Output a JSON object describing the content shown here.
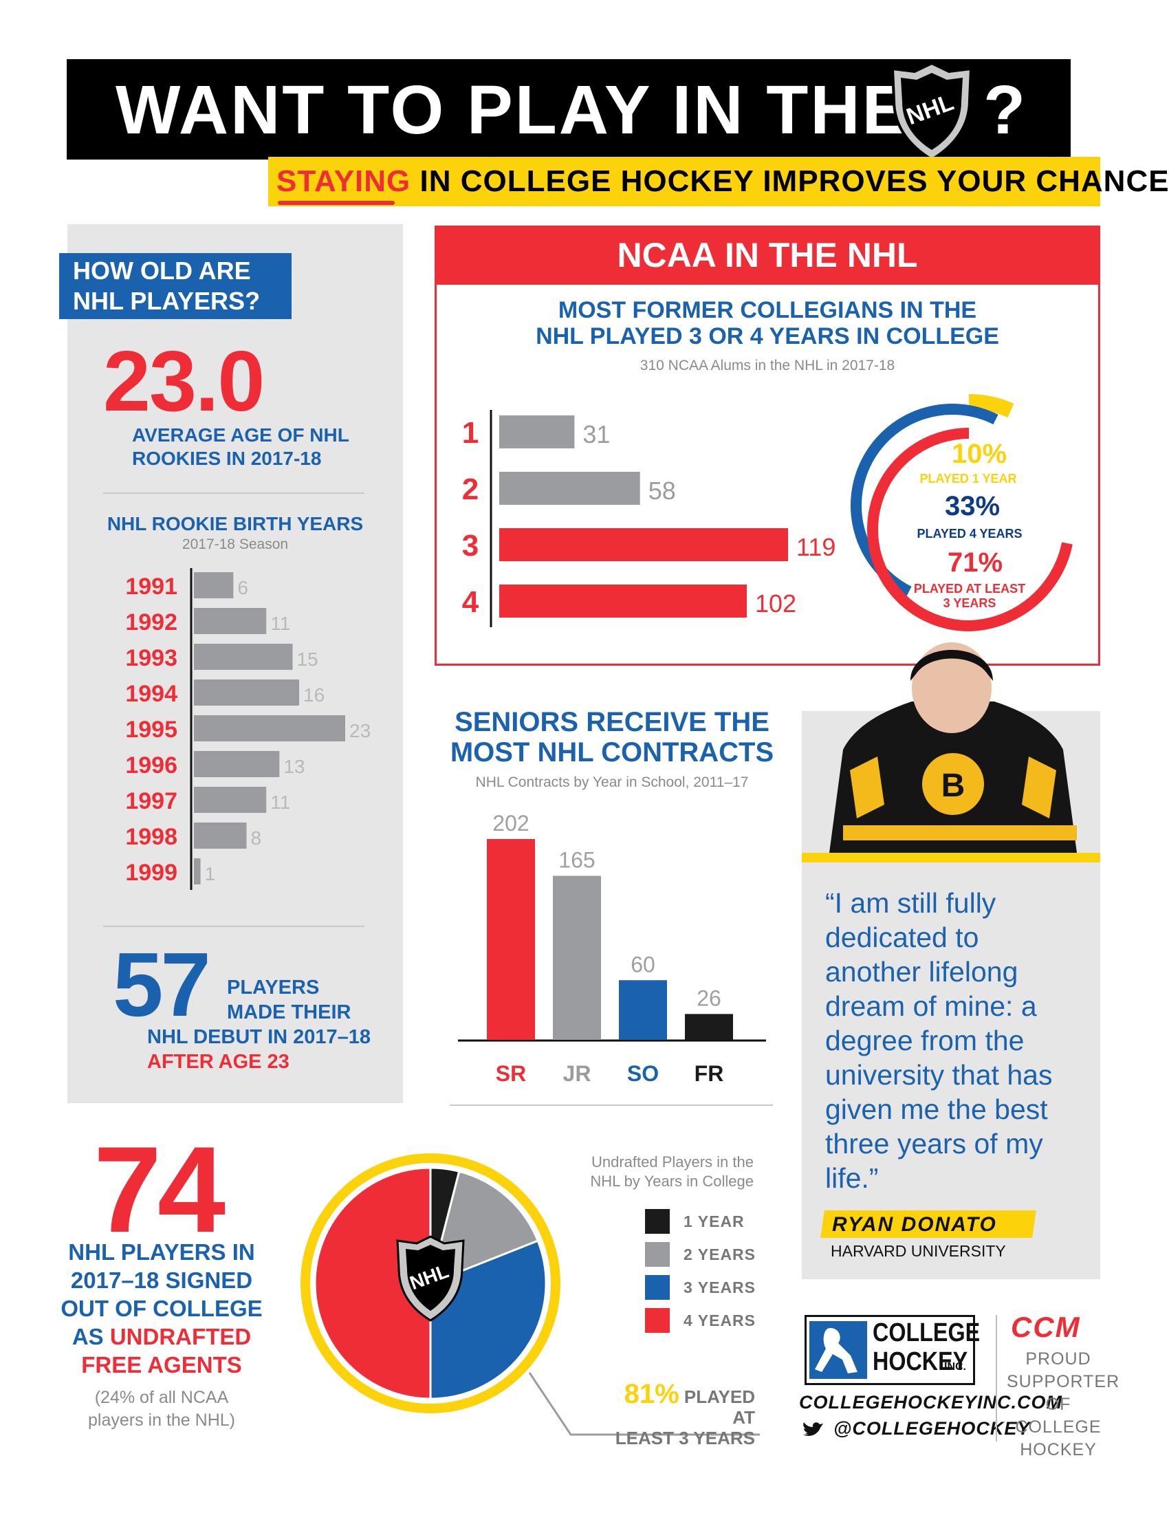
{
  "colors": {
    "red": "#ee2d36",
    "blue": "#1a62ae",
    "navy": "#0d3b84",
    "yellow": "#fcd20a",
    "grey": "#9a9c9f",
    "black": "#1b1b1b"
  },
  "header": {
    "title": "WANT TO PLAY IN THE",
    "logo_text": "NHL",
    "question_mark": "?",
    "subtitle_word": "STAYING",
    "subtitle_rest": "IN COLLEGE HOCKEY IMPROVES YOUR CHANCES!"
  },
  "age_panel": {
    "heading_line1": "HOW OLD ARE",
    "heading_line2": "NHL PLAYERS?",
    "average_age": "23.0",
    "average_caption_line1": "AVERAGE AGE OF NHL",
    "average_caption_line2": "ROOKIES IN 2017-18",
    "debut_number": "57",
    "debut_line1": "PLAYERS",
    "debut_line2": "MADE THEIR",
    "debut_line3": "NHL DEBUT IN 2017–18",
    "debut_line4": "AFTER AGE 23"
  },
  "ncaa_panel": {
    "banner": "NCAA IN THE NHL",
    "ring": {
      "pct1": "10%",
      "label1": "PLAYED 1 YEAR",
      "pct2": "33%",
      "label2": "PLAYED 4 YEARS",
      "pct3": "71%",
      "label3_line1": "PLAYED AT LEAST",
      "label3_line2": "3 YEARS"
    }
  },
  "quote_panel": {
    "quote": "“I am still fully dedicated to another lifelong dream of mine: a degree from the university that has given me the best three years of my life.”",
    "name": "RYAN DONATO",
    "school": "HARVARD UNIVERSITY"
  },
  "undrafted_panel": {
    "number": "74",
    "caption_line1": "NHL PLAYERS IN",
    "caption_line2": "2017–18 SIGNED",
    "caption_line3": "OUT OF COLLEGE",
    "caption_line4_a": "AS",
    "caption_line4_b": "UNDRAFTED",
    "caption_line5": "FREE AGENTS",
    "note_line1": "(24% of all NCAA",
    "note_line2": "players in the NHL)",
    "callout_pct": "81%",
    "callout_line1": "PLAYED AT",
    "callout_line2": "LEAST 3 YEARS"
  },
  "footer": {
    "org_line1": "COLLEGE",
    "org_line2": "HOCKEY",
    "org_suffix": "INC.",
    "website": "COLLEGEHOCKEYINC.COM",
    "twitter": "@COLLEGEHOCKEY",
    "sponsor": "CCM",
    "sponsor_line1": "PROUD",
    "sponsor_line2": "SUPPORTER",
    "sponsor_line3": "OF COLLEGE",
    "sponsor_line4": "HOCKEY"
  },
  "chart_data": [
    {
      "type": "bar",
      "orientation": "horizontal",
      "title": "NHL ROOKIE BIRTH YEARS",
      "subtitle": "2017-18 Season",
      "categories": [
        "1991",
        "1992",
        "1993",
        "1994",
        "1995",
        "1996",
        "1997",
        "1998",
        "1999"
      ],
      "values": [
        6,
        11,
        15,
        16,
        23,
        13,
        11,
        8,
        1
      ]
    },
    {
      "type": "bar",
      "orientation": "horizontal",
      "title_line1": "MOST FORMER COLLEGIANS IN THE",
      "title_line2": "NHL PLAYED 3 OR 4 YEARS IN COLLEGE",
      "subtitle": "310 NCAA Alums in the NHL in 2017-18",
      "categories": [
        "1",
        "2",
        "3",
        "4"
      ],
      "values": [
        31,
        58,
        119,
        102
      ],
      "colors": [
        "#9a9c9f",
        "#9a9c9f",
        "#ee2d36",
        "#ee2d36"
      ]
    },
    {
      "type": "bar",
      "orientation": "vertical",
      "title_line1": "SENIORS RECEIVE THE",
      "title_line2": "MOST NHL CONTRACTS",
      "subtitle": "NHL Contracts by Year in School, 2011–17",
      "categories": [
        "SR",
        "JR",
        "SO",
        "FR"
      ],
      "values": [
        202,
        165,
        60,
        26
      ],
      "colors": [
        "#ee2d36",
        "#9a9c9f",
        "#1a62ae",
        "#1b1b1b"
      ]
    },
    {
      "type": "pie",
      "title_line1": "Undrafted Players in the",
      "title_line2": "NHL by Years in College",
      "labels": [
        "1 YEAR",
        "2 YEARS",
        "3 YEARS",
        "4 YEARS"
      ],
      "values": [
        4,
        15,
        31,
        50
      ],
      "colors": [
        "#1b1b1b",
        "#9a9c9f",
        "#1a62ae",
        "#ee2d36"
      ]
    }
  ]
}
